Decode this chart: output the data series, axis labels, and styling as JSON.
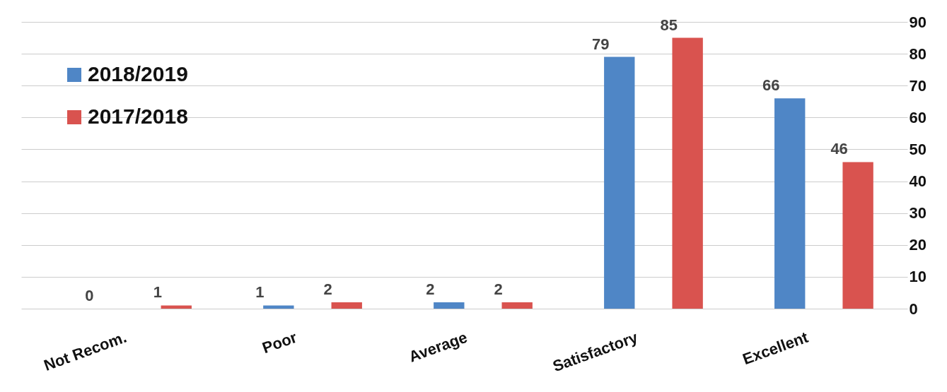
{
  "chart_data": {
    "type": "bar",
    "categories": [
      "Not Recom.",
      "Poor",
      "Average",
      "Satisfactory",
      "Excellent"
    ],
    "series": [
      {
        "name": "2018/2019",
        "color": "#4f86c6",
        "values": [
          0,
          1,
          2,
          79,
          66
        ]
      },
      {
        "name": "2017/2018",
        "color": "#d9534f",
        "values": [
          1,
          2,
          2,
          85,
          46
        ]
      }
    ],
    "ylim": [
      0,
      90
    ],
    "yticks": [
      0,
      10,
      20,
      30,
      40,
      50,
      60,
      70,
      80,
      90
    ],
    "grid": "y",
    "legend": "top left",
    "data_labels": true
  }
}
